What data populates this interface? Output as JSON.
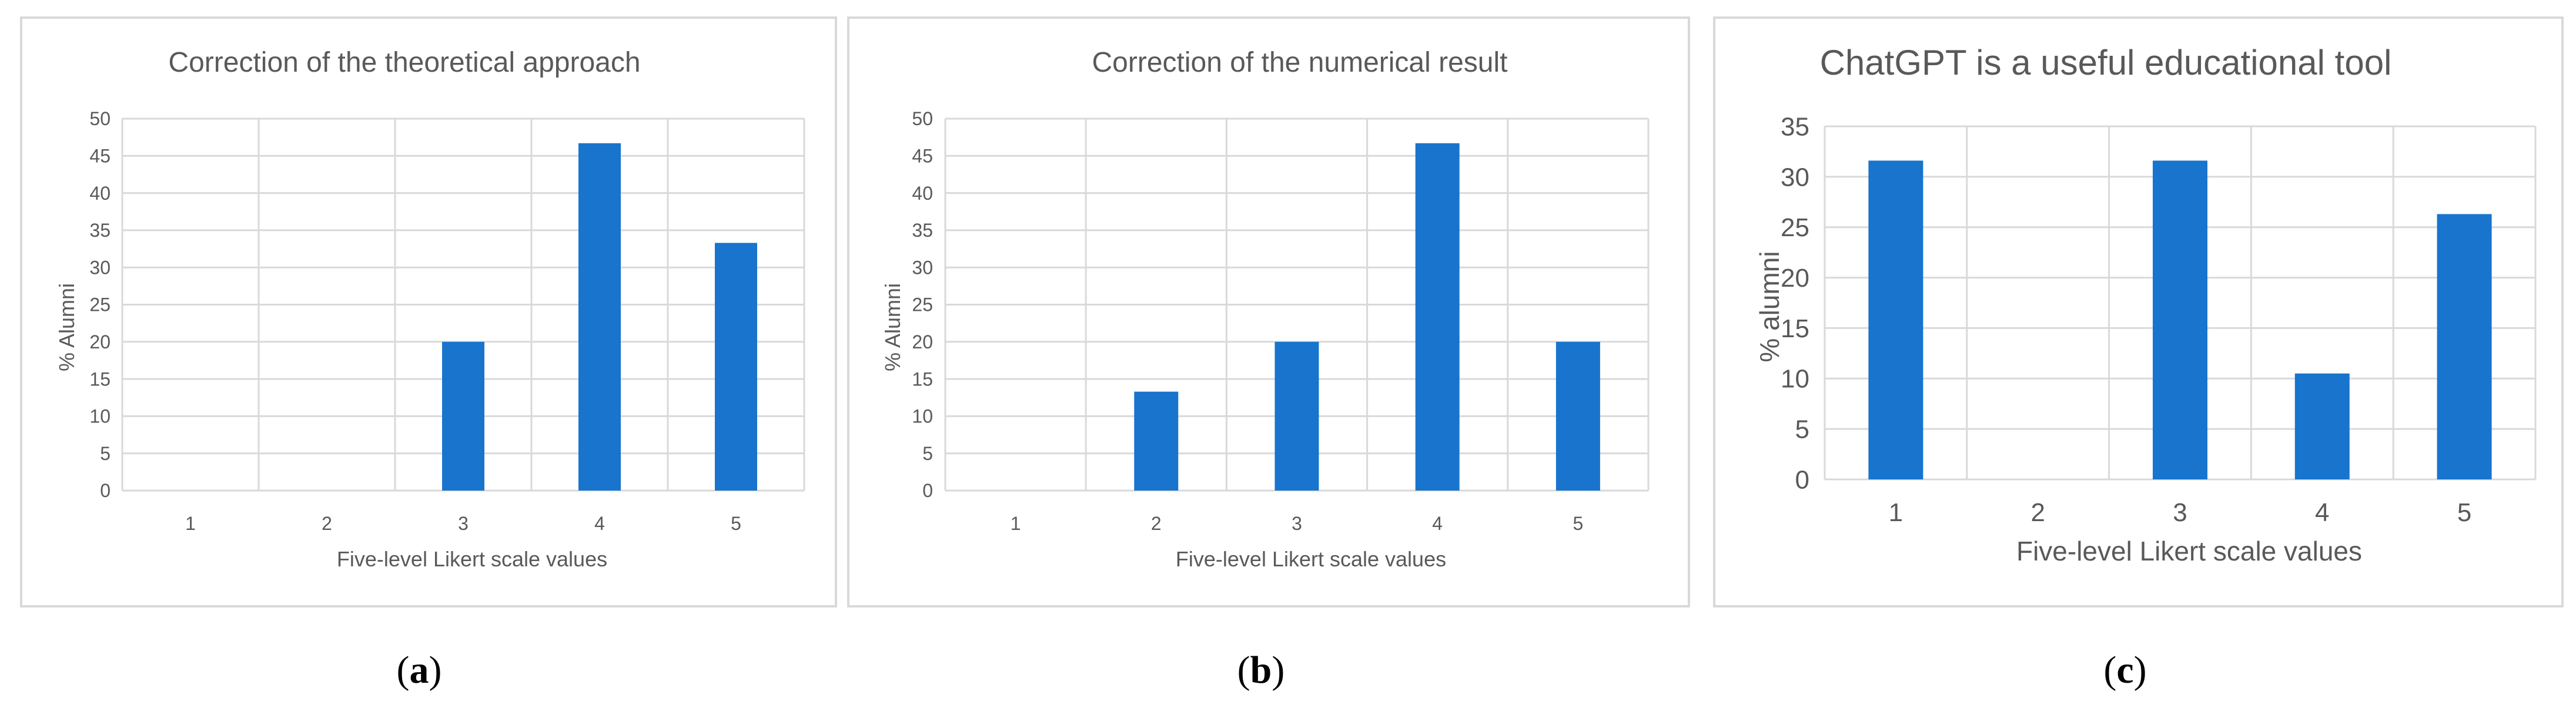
{
  "accent_color": "#1874cd",
  "grid_color": "#d9d9d9",
  "text_color": "#595959",
  "chart_data": [
    {
      "type": "bar",
      "title": "Correction of the theoretical approach",
      "xlabel": "Five-level Likert scale values",
      "ylabel": "% Alumni",
      "categories": [
        "1",
        "2",
        "3",
        "4",
        "5"
      ],
      "values": [
        0,
        0,
        20,
        46.7,
        33.3
      ],
      "ylim": [
        0,
        50
      ],
      "yticks": [
        "0",
        "5",
        "10",
        "15",
        "20",
        "25",
        "30",
        "35",
        "40",
        "45",
        "50"
      ],
      "grid": true,
      "caption_open": "(",
      "caption_letter": "a",
      "caption_close": ")"
    },
    {
      "type": "bar",
      "title": "Correction of the numerical result",
      "xlabel": "Five-level Likert scale values",
      "ylabel": "% Alumni",
      "categories": [
        "1",
        "2",
        "3",
        "4",
        "5"
      ],
      "values": [
        0,
        13.3,
        20,
        46.7,
        20
      ],
      "ylim": [
        0,
        50
      ],
      "yticks": [
        "0",
        "5",
        "10",
        "15",
        "20",
        "25",
        "30",
        "35",
        "40",
        "45",
        "50"
      ],
      "grid": true,
      "caption_open": "(",
      "caption_letter": "b",
      "caption_close": ")"
    },
    {
      "type": "bar",
      "title": "ChatGPT is a useful educational tool",
      "xlabel": "Five-level Likert scale values",
      "ylabel": "% alumni",
      "categories": [
        "1",
        "2",
        "3",
        "4",
        "5"
      ],
      "values": [
        31.6,
        0,
        31.6,
        10.5,
        26.3
      ],
      "ylim": [
        0,
        35
      ],
      "yticks": [
        "0",
        "5",
        "10",
        "15",
        "20",
        "25",
        "30",
        "35"
      ],
      "grid": true,
      "caption_open": "(",
      "caption_letter": "c",
      "caption_close": ")"
    }
  ]
}
